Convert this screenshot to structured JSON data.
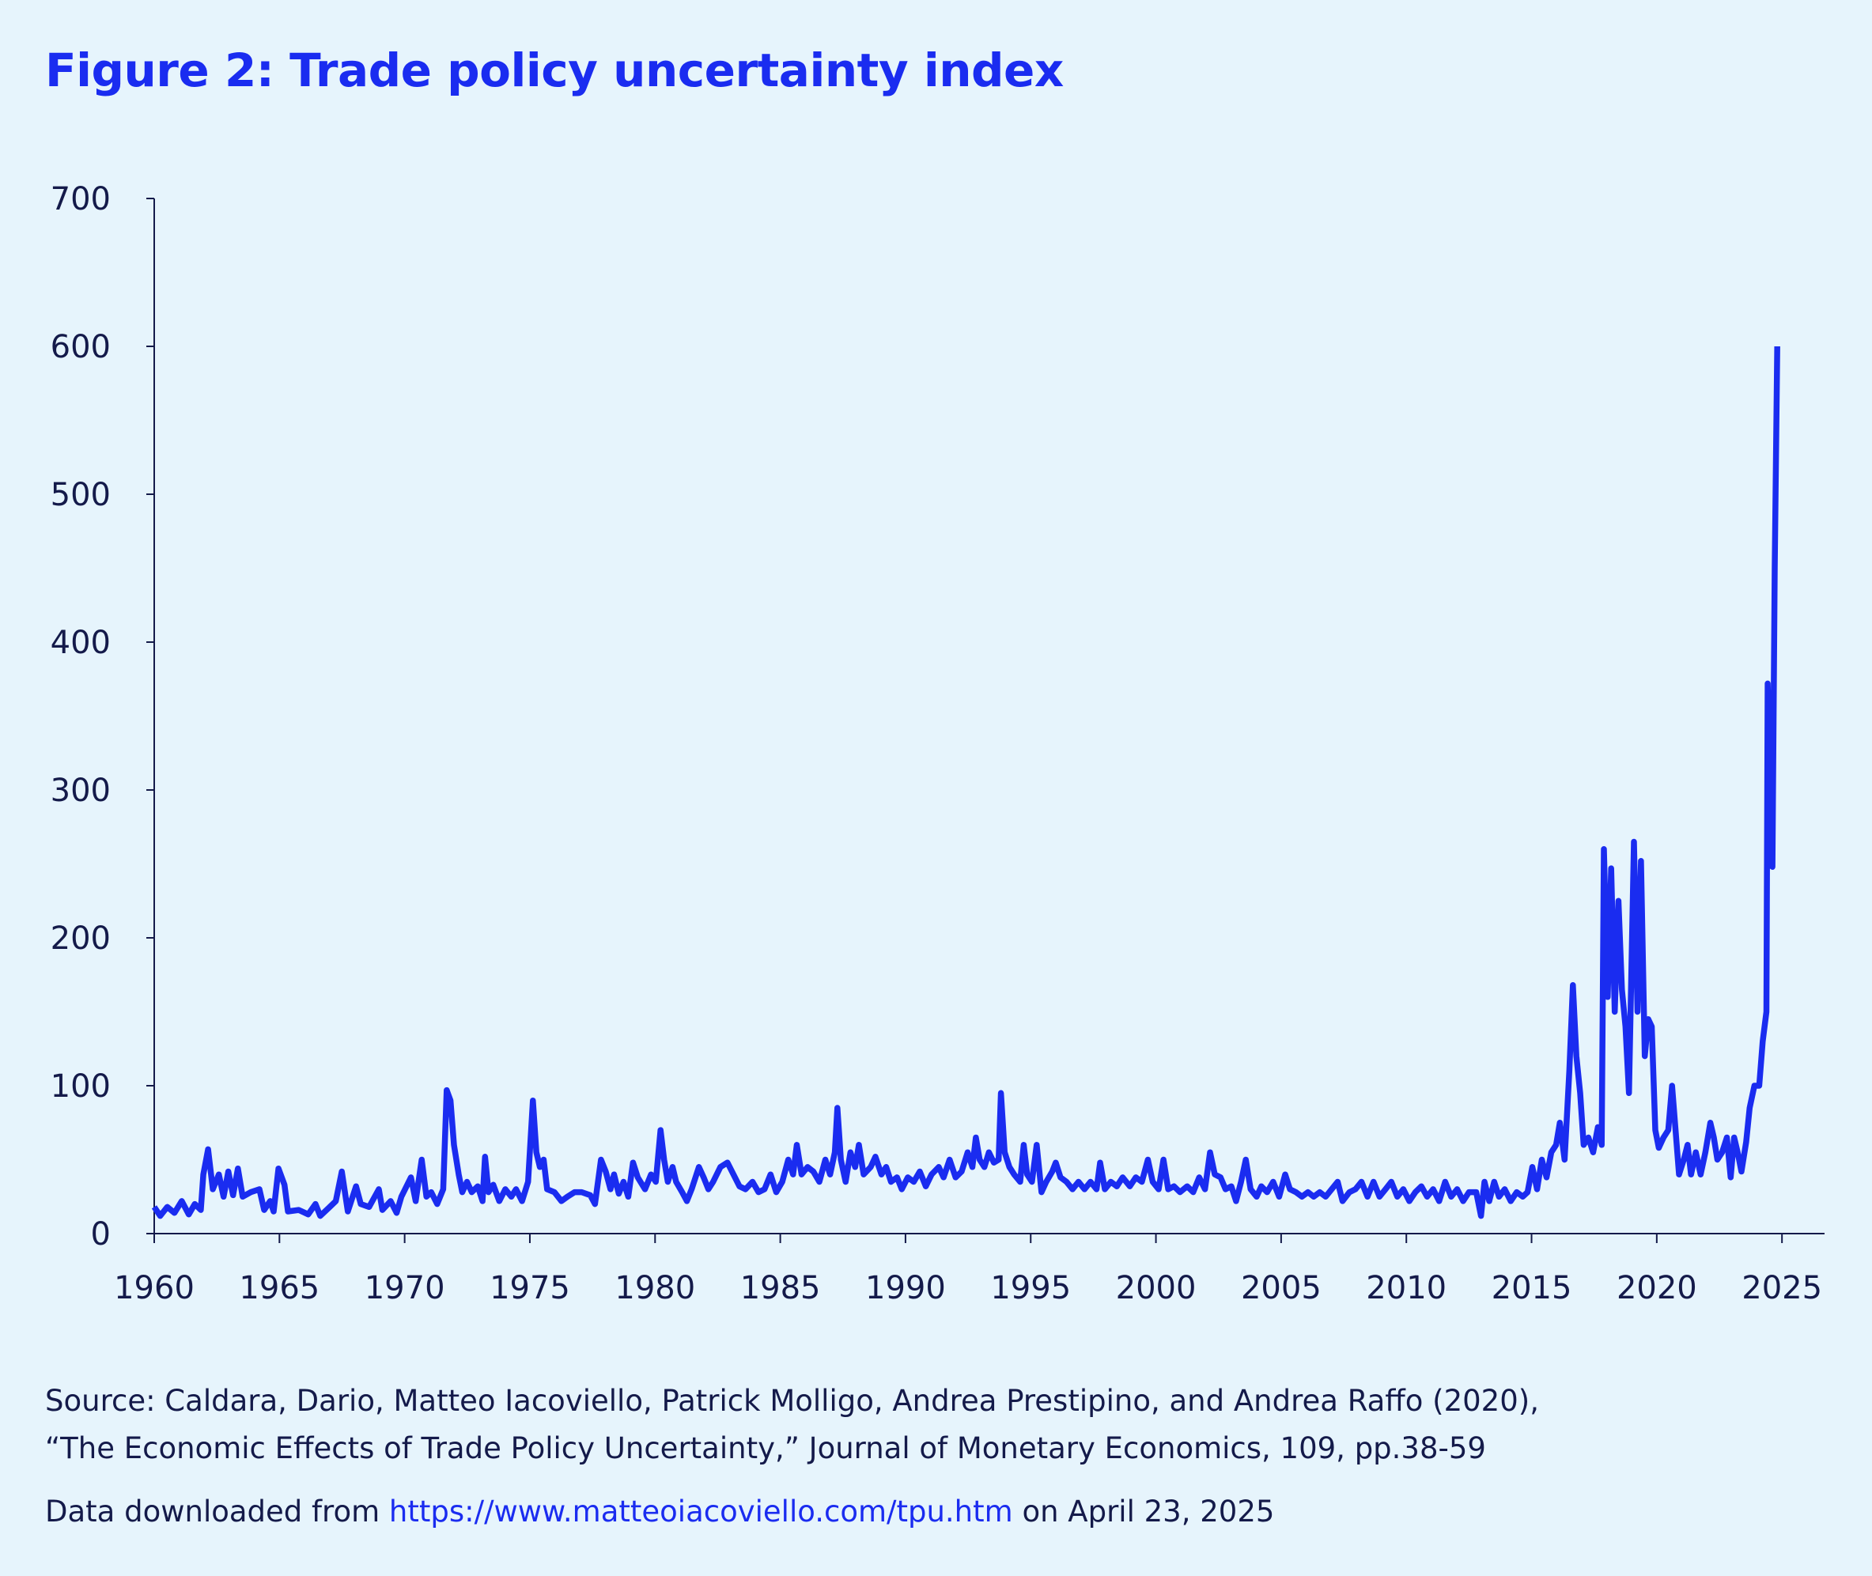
{
  "chart_data": {
    "type": "line",
    "title": "Figure 2: Trade policy uncertainty index",
    "color": "#1a2cf0",
    "xlim": [
      1960,
      2026.7
    ],
    "xticks": [
      1960,
      1965,
      1970,
      1975,
      1980,
      1985,
      1990,
      1995,
      2000,
      2005,
      2010,
      2015,
      2020,
      2025
    ],
    "ylim": [
      0,
      700
    ],
    "yticks": [
      0,
      100,
      200,
      300,
      400,
      500,
      600,
      700
    ],
    "x": [
      1960.0,
      1960.24,
      1960.52,
      1960.81,
      1961.1,
      1961.38,
      1961.62,
      1961.86,
      1961.96,
      1962.15,
      1962.34,
      1962.58,
      1962.77,
      1962.96,
      1963.15,
      1963.34,
      1963.53,
      1963.86,
      1964.2,
      1964.39,
      1964.63,
      1964.77,
      1964.96,
      1965.2,
      1965.34,
      1965.77,
      1966.15,
      1966.44,
      1966.63,
      1967.01,
      1967.25,
      1967.49,
      1967.73,
      1968.06,
      1968.25,
      1968.58,
      1968.97,
      1969.11,
      1969.44,
      1969.68,
      1969.87,
      1970.25,
      1970.44,
      1970.68,
      1970.87,
      1971.06,
      1971.3,
      1971.54,
      1971.68,
      1971.83,
      1971.97,
      1972.16,
      1972.3,
      1972.49,
      1972.68,
      1972.92,
      1973.11,
      1973.21,
      1973.35,
      1973.54,
      1973.78,
      1974.02,
      1974.26,
      1974.45,
      1974.69,
      1974.93,
      1975.12,
      1975.26,
      1975.4,
      1975.55,
      1975.69,
      1975.98,
      1976.26,
      1976.5,
      1976.79,
      1977.07,
      1977.41,
      1977.6,
      1977.84,
      1978.03,
      1978.22,
      1978.36,
      1978.55,
      1978.74,
      1978.93,
      1979.12,
      1979.31,
      1979.6,
      1979.84,
      1980.03,
      1980.22,
      1980.36,
      1980.51,
      1980.7,
      1980.84,
      1981.08,
      1981.27,
      1981.46,
      1981.75,
      1981.94,
      1982.13,
      1982.32,
      1982.61,
      1982.89,
      1983.13,
      1983.37,
      1983.61,
      1983.89,
      1984.13,
      1984.37,
      1984.61,
      1984.84,
      1985.08,
      1985.32,
      1985.51,
      1985.66,
      1985.85,
      1986.09,
      1986.32,
      1986.56,
      1986.8,
      1986.99,
      1987.18,
      1987.28,
      1987.42,
      1987.61,
      1987.8,
      1987.99,
      1988.14,
      1988.33,
      1988.61,
      1988.8,
      1989.04,
      1989.23,
      1989.42,
      1989.66,
      1989.85,
      1990.09,
      1990.33,
      1990.57,
      1990.81,
      1991.04,
      1991.33,
      1991.52,
      1991.76,
      1992.0,
      1992.24,
      1992.48,
      1992.67,
      1992.81,
      1992.96,
      1993.15,
      1993.33,
      1993.53,
      1993.72,
      1993.81,
      1993.96,
      1994.15,
      1994.34,
      1994.58,
      1994.72,
      1994.86,
      1995.05,
      1995.24,
      1995.43,
      1995.62,
      1995.86,
      1996.0,
      1996.19,
      1996.43,
      1996.67,
      1996.91,
      1997.15,
      1997.39,
      1997.63,
      1997.77,
      1997.96,
      1998.2,
      1998.44,
      1998.67,
      1998.96,
      1999.2,
      1999.44,
      1999.68,
      1999.87,
      2000.11,
      2000.3,
      2000.49,
      2000.72,
      2000.96,
      2001.25,
      2001.49,
      2001.73,
      2001.96,
      2002.16,
      2002.35,
      2002.58,
      2002.78,
      2003.01,
      2003.2,
      2003.4,
      2003.59,
      2003.78,
      2004.02,
      2004.21,
      2004.44,
      2004.68,
      2004.92,
      2005.16,
      2005.35,
      2005.59,
      2005.83,
      2006.07,
      2006.3,
      2006.54,
      2006.78,
      2007.02,
      2007.26,
      2007.45,
      2007.73,
      2007.97,
      2008.21,
      2008.45,
      2008.69,
      2008.93,
      2009.17,
      2009.4,
      2009.64,
      2009.88,
      2010.12,
      2010.36,
      2010.6,
      2010.83,
      2011.07,
      2011.31,
      2011.55,
      2011.79,
      2012.03,
      2012.27,
      2012.5,
      2012.79,
      2012.98,
      2013.12,
      2013.31,
      2013.51,
      2013.7,
      2013.93,
      2014.17,
      2014.41,
      2014.65,
      2014.84,
      2015.03,
      2015.22,
      2015.41,
      2015.6,
      2015.79,
      2015.98,
      2016.13,
      2016.32,
      2016.51,
      2016.65,
      2016.79,
      2016.94,
      2017.08,
      2017.27,
      2017.46,
      2017.65,
      2017.8,
      2017.89,
      2018.04,
      2018.18,
      2018.32,
      2018.47,
      2018.61,
      2018.75,
      2018.89,
      2019.09,
      2019.23,
      2019.37,
      2019.52,
      2019.66,
      2019.8,
      2019.94,
      2020.08,
      2020.27,
      2020.46,
      2020.61,
      2020.75,
      2020.89,
      2021.08,
      2021.23,
      2021.37,
      2021.56,
      2021.75,
      2021.94,
      2022.14,
      2022.28,
      2022.42,
      2022.61,
      2022.8,
      2022.95,
      2023.09,
      2023.23,
      2023.38,
      2023.57,
      2023.71,
      2023.9,
      2024.09,
      2024.23,
      2024.38,
      2024.43,
      2024.52,
      2024.62,
      2024.71,
      2024.81
    ],
    "values": [
      18,
      12,
      18,
      14,
      22,
      13,
      20,
      16,
      40,
      57,
      30,
      40,
      25,
      42,
      26,
      44,
      25,
      28,
      30,
      16,
      22,
      15,
      44,
      33,
      15,
      16,
      13,
      20,
      12,
      18,
      22,
      42,
      15,
      32,
      20,
      18,
      30,
      16,
      22,
      14,
      25,
      38,
      22,
      50,
      25,
      28,
      20,
      30,
      97,
      90,
      60,
      40,
      28,
      35,
      28,
      32,
      22,
      52,
      28,
      33,
      22,
      30,
      25,
      30,
      22,
      35,
      90,
      55,
      45,
      50,
      30,
      28,
      22,
      25,
      28,
      28,
      26,
      20,
      50,
      42,
      30,
      40,
      27,
      35,
      25,
      48,
      38,
      30,
      40,
      35,
      70,
      50,
      35,
      45,
      35,
      28,
      22,
      30,
      45,
      38,
      30,
      35,
      45,
      48,
      40,
      32,
      30,
      35,
      28,
      30,
      40,
      28,
      35,
      50,
      40,
      60,
      40,
      45,
      42,
      35,
      50,
      40,
      55,
      85,
      50,
      35,
      55,
      45,
      60,
      40,
      45,
      52,
      40,
      45,
      35,
      38,
      30,
      38,
      35,
      42,
      32,
      40,
      45,
      38,
      50,
      38,
      42,
      55,
      45,
      65,
      50,
      45,
      55,
      48,
      50,
      95,
      55,
      45,
      40,
      35,
      60,
      40,
      35,
      60,
      28,
      35,
      42,
      48,
      38,
      35,
      30,
      35,
      30,
      35,
      30,
      48,
      30,
      35,
      32,
      38,
      32,
      38,
      35,
      50,
      35,
      30,
      50,
      30,
      32,
      28,
      32,
      28,
      38,
      30,
      55,
      40,
      38,
      30,
      32,
      22,
      35,
      50,
      30,
      25,
      32,
      28,
      35,
      25,
      40,
      30,
      28,
      25,
      28,
      25,
      28,
      25,
      30,
      35,
      22,
      28,
      30,
      35,
      25,
      35,
      25,
      30,
      35,
      25,
      30,
      22,
      28,
      32,
      25,
      30,
      22,
      35,
      25,
      30,
      22,
      28,
      28,
      12,
      35,
      22,
      35,
      25,
      30,
      22,
      28,
      25,
      28,
      45,
      30,
      50,
      38,
      55,
      60,
      75,
      50,
      110,
      168,
      120,
      95,
      60,
      65,
      55,
      72,
      60,
      260,
      160,
      247,
      150,
      225,
      165,
      140,
      95,
      265,
      150,
      252,
      120,
      145,
      140,
      70,
      58,
      65,
      70,
      100,
      70,
      40,
      50,
      60,
      40,
      55,
      40,
      55,
      75,
      65,
      50,
      55,
      65,
      38,
      65,
      55,
      42,
      62,
      85,
      100,
      100,
      130,
      150,
      372,
      300,
      248,
      450,
      600
    ]
  },
  "source_lines": [
    "Source: Caldara, Dario, Matteo Iacoviello, Patrick Molligo, Andrea Prestipino, and Andrea Raffo (2020),",
    "“The Economic Effects of Trade Policy Uncertainty,” Journal of Monetary Economics, 109, pp.38-59"
  ],
  "download_note": {
    "prefix": "Data downloaded from",
    "url": "https://www.matteoiacoviello.com/tpu.htm",
    "suffix": "on April 23, 2025"
  }
}
